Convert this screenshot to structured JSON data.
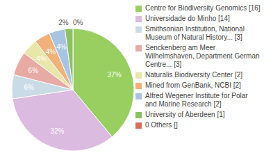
{
  "chart_data": {
    "type": "pie",
    "categories": [
      "Centre for Biodiversity Genomics [16]",
      "Universidade do Minho [14]",
      "Smithsonian Institution, National Museum of Natural History... [3]",
      "Senckenberg am Meer Wilhelmshaven, Department German Centre... [3]",
      "Naturalis Biodiversity Center [2]",
      "Mined from GenBank, NCBI [2]",
      "Alfred Wegener Institute for Polar and Marine Research [2]",
      "University of Aberdeen [1]",
      "0 Others []"
    ],
    "values": [
      37,
      32,
      6,
      6,
      4,
      4,
      4,
      2,
      0
    ],
    "value_labels": [
      "37%",
      "32%",
      "6%",
      "6%",
      "4%",
      "4%",
      "4%",
      "2%",
      "0%"
    ],
    "colors": [
      "#98cf60",
      "#dbbbdf",
      "#c9dbe6",
      "#e7aaa4",
      "#e8e6a8",
      "#f0b27a",
      "#a9c3e3",
      "#8cc063",
      "#d6705a"
    ],
    "data_labels": true,
    "legend": "right"
  }
}
